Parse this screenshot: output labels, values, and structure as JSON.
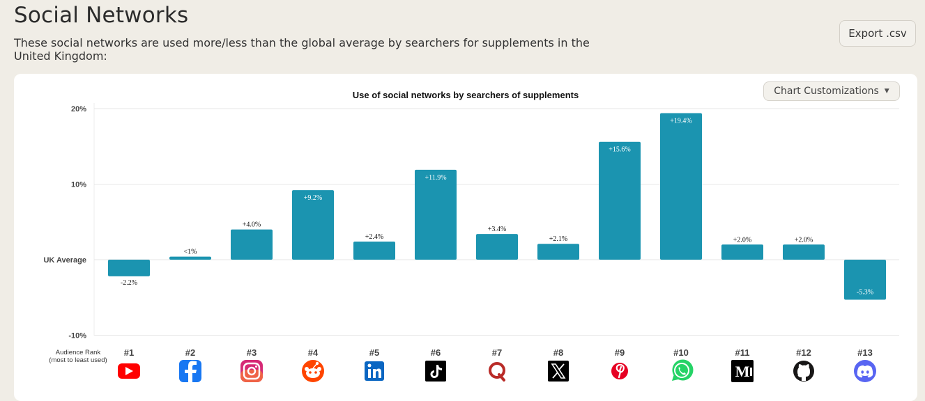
{
  "page": {
    "title": "Social Networks",
    "subtitle": "These social networks are used more/less than the global average by searchers for supplements in the United Kingdom:",
    "export_label": "Export .csv",
    "customize_label": "Chart Customizations"
  },
  "chart_data": {
    "type": "bar",
    "title": "Use of social networks by searchers of supplements",
    "categories": [
      "#1",
      "#2",
      "#3",
      "#4",
      "#5",
      "#6",
      "#7",
      "#8",
      "#9",
      "#10",
      "#11",
      "#12",
      "#13"
    ],
    "icons": [
      "youtube-icon",
      "facebook-icon",
      "instagram-icon",
      "reddit-icon",
      "linkedin-icon",
      "tiktok-icon",
      "quora-icon",
      "x-icon",
      "pinterest-icon",
      "whatsapp-icon",
      "medium-icon",
      "github-icon",
      "discord-icon"
    ],
    "values": [
      -2.2,
      0.4,
      4.0,
      9.2,
      2.4,
      11.9,
      3.4,
      2.1,
      15.6,
      19.4,
      2.0,
      2.0,
      -5.3
    ],
    "value_labels": [
      "-2.2%",
      "<1%",
      "+4.0%",
      "+9.2%",
      "+2.4%",
      "+11.9%",
      "+3.4%",
      "+2.1%",
      "+15.6%",
      "+19.4%",
      "+2.0%",
      "+2.0%",
      "-5.3%"
    ],
    "yticks": [
      {
        "value": 20,
        "label": "20%"
      },
      {
        "value": 10,
        "label": "10%"
      },
      {
        "value": 0,
        "label": "UK Average"
      },
      {
        "value": -10,
        "label": "-10%"
      }
    ],
    "ylim": [
      -10,
      20
    ],
    "rank_label_line1": "Audience Rank",
    "rank_label_line2": "(most to least used)",
    "bar_color": "#1b94b0",
    "grid": true
  }
}
